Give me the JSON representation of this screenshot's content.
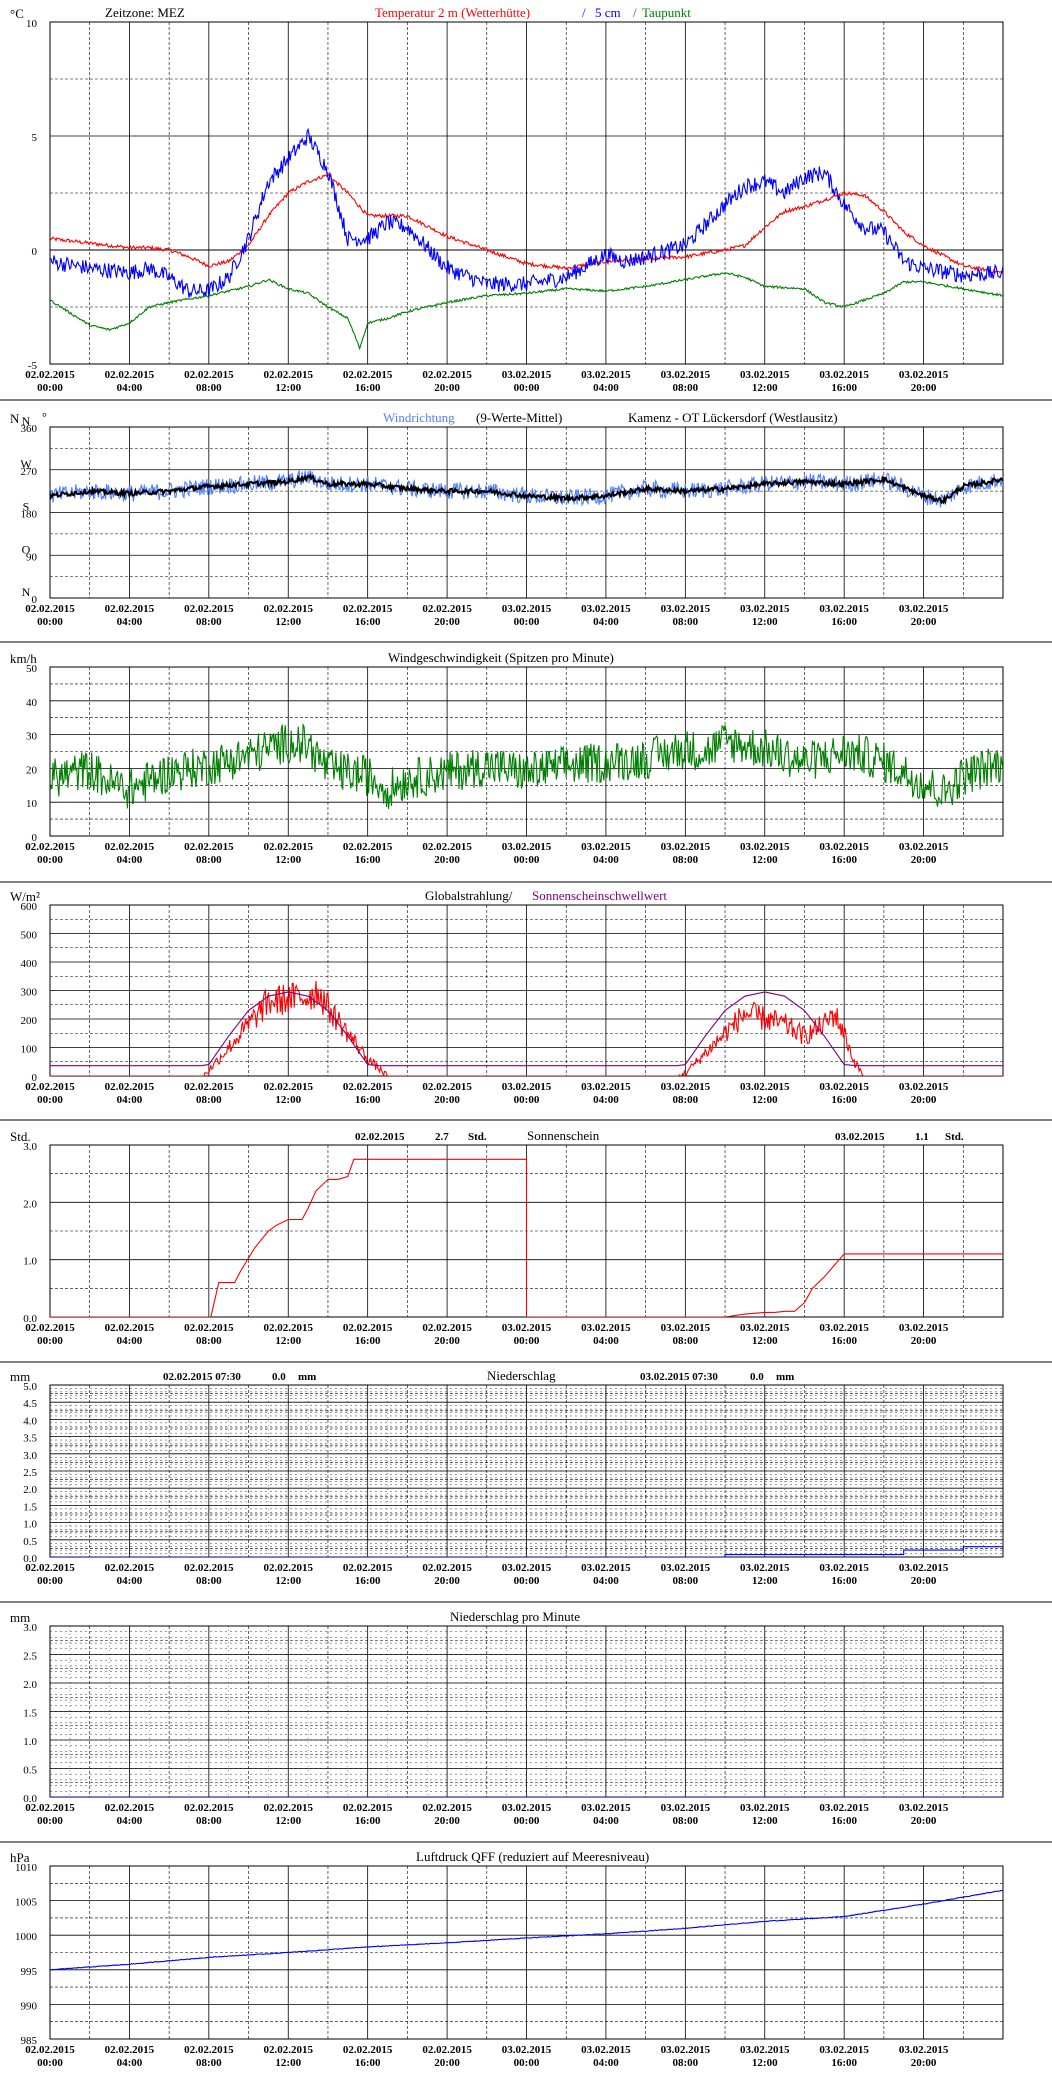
{
  "x_ticks": [
    [
      "02.02.2015",
      "00:00"
    ],
    [
      "02.02.2015",
      "04:00"
    ],
    [
      "02.02.2015",
      "08:00"
    ],
    [
      "02.02.2015",
      "12:00"
    ],
    [
      "02.02.2015",
      "16:00"
    ],
    [
      "02.02.2015",
      "20:00"
    ],
    [
      "03.02.2015",
      "00:00"
    ],
    [
      "03.02.2015",
      "04:00"
    ],
    [
      "03.02.2015",
      "08:00"
    ],
    [
      "03.02.2015",
      "12:00"
    ],
    [
      "03.02.2015",
      "16:00"
    ],
    [
      "03.02.2015",
      "20:00"
    ]
  ],
  "colors": {
    "red": "#ff0000",
    "blue": "#0000ff",
    "green": "#008000",
    "black": "#000000",
    "purple": "#800080",
    "lightblue": "#4f7fff",
    "grid": "#000000"
  },
  "chart_data": [
    {
      "id": "temperature",
      "type": "line",
      "unit_label": "°C",
      "header": [
        {
          "text": "Zeitzone: MEZ",
          "color": "#000000"
        },
        {
          "text": "Temperatur 2 m (Wetterhütte)",
          "color": "#ff0000"
        },
        {
          "text": "/",
          "color": "#0000ff"
        },
        {
          "text": "5 cm",
          "color": "#0000ff"
        },
        {
          "text": "/",
          "color": "#008000"
        },
        {
          "text": "Taupunkt",
          "color": "#008000"
        }
      ],
      "ylim": [
        -5,
        10
      ],
      "y_ticks": [
        "10",
        "5",
        "0",
        "-5"
      ],
      "x_hours": [
        0,
        24,
        48
      ],
      "series": [
        {
          "name": "Temperatur 2 m (Wetterhütte)",
          "color": "#ff0000",
          "x": [
            0,
            2,
            4,
            5,
            6,
            7,
            8,
            9,
            10,
            11,
            12,
            13,
            14,
            15,
            16,
            18,
            20,
            22,
            24,
            26,
            28,
            30,
            32,
            34,
            35,
            36,
            37,
            38,
            39,
            40,
            41,
            42,
            43,
            44,
            46,
            48
          ],
          "y": [
            0.5,
            0.3,
            0.1,
            0.1,
            0,
            -0.3,
            -0.7,
            -0.5,
            0.2,
            1.5,
            2.5,
            3.0,
            3.3,
            2.5,
            1.5,
            1.5,
            0.6,
            0,
            -0.6,
            -0.8,
            -0.5,
            -0.4,
            -0.3,
            0,
            0.2,
            1,
            1.7,
            1.9,
            2.2,
            2.5,
            2.4,
            1.7,
            0.8,
            0.2,
            -0.7,
            -1.0
          ]
        },
        {
          "name": "5 cm",
          "color": "#0000ff",
          "x": [
            0,
            2,
            4,
            5,
            6,
            7,
            8,
            9,
            10,
            11,
            12,
            13,
            14,
            15,
            16,
            17,
            18,
            20,
            22,
            24,
            26,
            28,
            29,
            30,
            32,
            34,
            35,
            36,
            37,
            38,
            39,
            40,
            41,
            42,
            43,
            44,
            46,
            48
          ],
          "y": [
            -0.5,
            -0.8,
            -1.0,
            -0.8,
            -1.2,
            -1.8,
            -1.8,
            -1.2,
            0.5,
            3.0,
            4.0,
            5.0,
            3.5,
            0.5,
            0.5,
            1.2,
            1.0,
            -0.8,
            -1.5,
            -1.5,
            -1.2,
            -0.2,
            -0.5,
            -0.3,
            0.2,
            2.0,
            2.8,
            3.0,
            2.5,
            3.2,
            3.4,
            2.0,
            1.0,
            0.8,
            -0.5,
            -0.8,
            -1.1,
            -1.0
          ]
        },
        {
          "name": "Taupunkt",
          "color": "#008000",
          "x": [
            0,
            2,
            3,
            4,
            5,
            6,
            8,
            10,
            11,
            12,
            13,
            14,
            15,
            15.6,
            16,
            17,
            18,
            20,
            22,
            24,
            26,
            28,
            30,
            32,
            34,
            35,
            36,
            38,
            39,
            40,
            42,
            43,
            44,
            46,
            48
          ],
          "y": [
            -2.2,
            -3.3,
            -3.5,
            -3.2,
            -2.5,
            -2.3,
            -2.0,
            -1.6,
            -1.3,
            -1.7,
            -1.9,
            -2.5,
            -3.0,
            -4.3,
            -3.2,
            -3.0,
            -2.7,
            -2.3,
            -2.0,
            -1.9,
            -1.7,
            -1.8,
            -1.6,
            -1.3,
            -1.0,
            -1.2,
            -1.6,
            -1.7,
            -2.3,
            -2.5,
            -1.9,
            -1.4,
            -1.4,
            -1.7,
            -2.0
          ]
        }
      ]
    },
    {
      "id": "wind_direction",
      "type": "line",
      "unit_label": "N",
      "unit_label2": "°",
      "header": [
        {
          "text": "Windrichtung",
          "color": "#4f7fff"
        },
        {
          "text": "(9-Werte-Mittel)",
          "color": "#000000"
        },
        {
          "text": "Kamenz - OT Lückersdorf (Westlausitz)",
          "color": "#000000"
        }
      ],
      "ylim": [
        0,
        360
      ],
      "y_ticks": [
        "360",
        "270",
        "180",
        "90",
        "0"
      ],
      "compass_labels": [
        "N",
        "W",
        "S",
        "O",
        "N"
      ],
      "series": [
        {
          "name": "Windrichtung",
          "color": "#4f7fff",
          "x": [
            0,
            2,
            4,
            6,
            8,
            10,
            12,
            13,
            14,
            16,
            18,
            20,
            22,
            24,
            26,
            28,
            30,
            32,
            34,
            36,
            38,
            40,
            42,
            44,
            45,
            46,
            48
          ],
          "y": [
            215,
            225,
            220,
            225,
            235,
            240,
            245,
            255,
            240,
            240,
            230,
            225,
            225,
            215,
            210,
            215,
            230,
            225,
            230,
            240,
            245,
            240,
            250,
            215,
            205,
            235,
            250
          ]
        },
        {
          "name": "9-Werte-Mittel",
          "color": "#000000",
          "x": [
            0,
            2,
            4,
            6,
            8,
            10,
            12,
            13,
            14,
            16,
            18,
            20,
            22,
            24,
            26,
            28,
            30,
            32,
            34,
            36,
            38,
            40,
            42,
            44,
            45,
            46,
            48
          ],
          "y": [
            215,
            225,
            220,
            225,
            235,
            240,
            245,
            255,
            240,
            240,
            230,
            225,
            225,
            215,
            210,
            215,
            230,
            225,
            230,
            240,
            245,
            240,
            250,
            215,
            205,
            235,
            250
          ]
        }
      ]
    },
    {
      "id": "wind_speed",
      "type": "line",
      "unit_label": "km/h",
      "header": [
        {
          "text": "Windgeschwindigkeit (Spitzen pro Minute)",
          "color": "#000000"
        }
      ],
      "ylim": [
        0,
        50
      ],
      "y_ticks": [
        "50",
        "40",
        "30",
        "20",
        "10",
        "0"
      ],
      "series": [
        {
          "name": "Windgeschwindigkeit",
          "color": "#008000",
          "x": [
            0,
            2,
            3,
            4,
            6,
            8,
            10,
            12,
            13,
            14,
            16,
            17,
            18,
            20,
            22,
            24,
            26,
            28,
            30,
            32,
            33,
            34,
            36,
            38,
            40,
            41,
            42,
            44,
            45,
            46,
            48
          ],
          "y": [
            15,
            18,
            14,
            12,
            17,
            19,
            22,
            26,
            25,
            18,
            16,
            12,
            15,
            17,
            19,
            17,
            19,
            20,
            21,
            24,
            23,
            26,
            24,
            20,
            23,
            22,
            20,
            14,
            11,
            16,
            20
          ]
        }
      ]
    },
    {
      "id": "global_radiation",
      "type": "line",
      "unit_label": "W/m²",
      "header": [
        {
          "text": "Globalstrahlung/",
          "color": "#000000"
        },
        {
          "text": "Sonnenscheinschwellwert",
          "color": "#800080"
        }
      ],
      "ylim": [
        0,
        600
      ],
      "y_ticks": [
        "600",
        "500",
        "400",
        "300",
        "200",
        "100",
        "0"
      ],
      "series": [
        {
          "name": "Globalstrahlung",
          "color": "#ff0000",
          "x": [
            0,
            7.7,
            8,
            9,
            10,
            11,
            12,
            13,
            13.5,
            14,
            15,
            16,
            17,
            24,
            31.7,
            32,
            33,
            34,
            35,
            36,
            37,
            38,
            39,
            39.5,
            40,
            40.5,
            41,
            48
          ],
          "y": [
            0,
            0,
            20,
            100,
            180,
            260,
            270,
            280,
            300,
            240,
            150,
            60,
            0,
            0,
            0,
            10,
            80,
            150,
            220,
            200,
            180,
            140,
            180,
            220,
            150,
            50,
            0,
            0
          ]
        },
        {
          "name": "Sonnenscheinschwellwert",
          "color": "#800080",
          "x": [
            0,
            7.6,
            8,
            9,
            10,
            11,
            12,
            13,
            14,
            15,
            16,
            16.6,
            31.6,
            32,
            33,
            34,
            35,
            36,
            37,
            38,
            39,
            40,
            40.6,
            48
          ],
          "y": [
            36,
            36,
            40,
            140,
            230,
            280,
            295,
            280,
            230,
            140,
            40,
            36,
            36,
            40,
            140,
            230,
            280,
            295,
            280,
            230,
            140,
            40,
            36,
            36
          ]
        }
      ]
    },
    {
      "id": "sunshine",
      "type": "line",
      "unit_label": "Std.",
      "header": [
        {
          "text": "02.02.2015",
          "color": "#000000"
        },
        {
          "text": "2.7",
          "color": "#000000"
        },
        {
          "text": "Std.",
          "color": "#000000"
        },
        {
          "text": "Sonnenschein",
          "color": "#000000"
        },
        {
          "text": "03.02.2015",
          "color": "#000000"
        },
        {
          "text": "1.1",
          "color": "#000000"
        },
        {
          "text": "Std.",
          "color": "#000000"
        }
      ],
      "ylim": [
        0,
        3
      ],
      "y_ticks": [
        "3.0",
        "2.0",
        "1.0",
        "0.0"
      ],
      "series": [
        {
          "name": "Sonnenschein",
          "color": "#ff0000",
          "x": [
            0,
            8.1,
            8.5,
            9.3,
            9.6,
            10.3,
            11,
            11.4,
            12,
            12.7,
            13,
            13.4,
            14,
            14.5,
            15,
            15.3,
            24,
            24,
            34,
            35,
            36,
            36.5,
            37,
            37.5,
            38,
            38.4,
            39,
            40,
            48
          ],
          "y": [
            0,
            0,
            0.6,
            0.6,
            0.8,
            1.2,
            1.5,
            1.6,
            1.7,
            1.7,
            1.9,
            2.2,
            2.4,
            2.4,
            2.45,
            2.75,
            2.75,
            0,
            0,
            0.05,
            0.08,
            0.08,
            0.1,
            0.1,
            0.25,
            0.5,
            0.7,
            1.1,
            1.1
          ]
        }
      ]
    },
    {
      "id": "precipitation",
      "type": "line",
      "unit_label": "mm",
      "header": [
        {
          "text": "02.02.2015 07:30",
          "color": "#000000"
        },
        {
          "text": "0.0",
          "color": "#000000"
        },
        {
          "text": "mm",
          "color": "#000000"
        },
        {
          "text": "Niederschlag",
          "color": "#000000"
        },
        {
          "text": "03.02.2015 07:30",
          "color": "#000000"
        },
        {
          "text": "0.0",
          "color": "#000000"
        },
        {
          "text": "mm",
          "color": "#000000"
        }
      ],
      "ylim": [
        0,
        5
      ],
      "y_ticks": [
        "5.0",
        "4.5",
        "4.0",
        "3.5",
        "3.0",
        "2.5",
        "2.0",
        "1.5",
        "1.0",
        "0.5",
        "0.0"
      ],
      "series": [
        {
          "name": "Niederschlag",
          "color": "#0000ff",
          "x": [
            0,
            34,
            34,
            43,
            43,
            46,
            46,
            48
          ],
          "y": [
            0,
            0,
            0.07,
            0.07,
            0.2,
            0.2,
            0.3,
            0.3
          ]
        }
      ]
    },
    {
      "id": "precipitation_per_minute",
      "type": "line",
      "unit_label": "mm",
      "header": [
        {
          "text": "Niederschlag pro Minute",
          "color": "#000000"
        }
      ],
      "ylim": [
        0,
        3
      ],
      "y_ticks": [
        "3.0",
        "2.5",
        "2.0",
        "1.5",
        "1.0",
        "0.5",
        "0.0"
      ],
      "series": [
        {
          "name": "Niederschlag pro Minute",
          "color": "#0000ff",
          "x": [
            0,
            48
          ],
          "y": [
            0,
            0
          ]
        }
      ]
    },
    {
      "id": "pressure",
      "type": "line",
      "unit_label": "hPa",
      "header": [
        {
          "text": "Luftdruck QFF (reduziert auf Meeresniveau)",
          "color": "#000000"
        }
      ],
      "ylim": [
        985,
        1010
      ],
      "y_ticks": [
        "1010",
        "1005",
        "1000",
        "995",
        "990",
        "985"
      ],
      "series": [
        {
          "name": "Luftdruck QFF",
          "color": "#0000ff",
          "x": [
            0,
            4,
            8,
            12,
            16,
            20,
            24,
            28,
            32,
            36,
            40,
            44,
            48
          ],
          "y": [
            995.0,
            995.8,
            996.8,
            997.5,
            998.3,
            998.9,
            999.6,
            1000.2,
            1001.0,
            1002.0,
            1002.7,
            1004.5,
            1006.5
          ]
        }
      ]
    }
  ]
}
